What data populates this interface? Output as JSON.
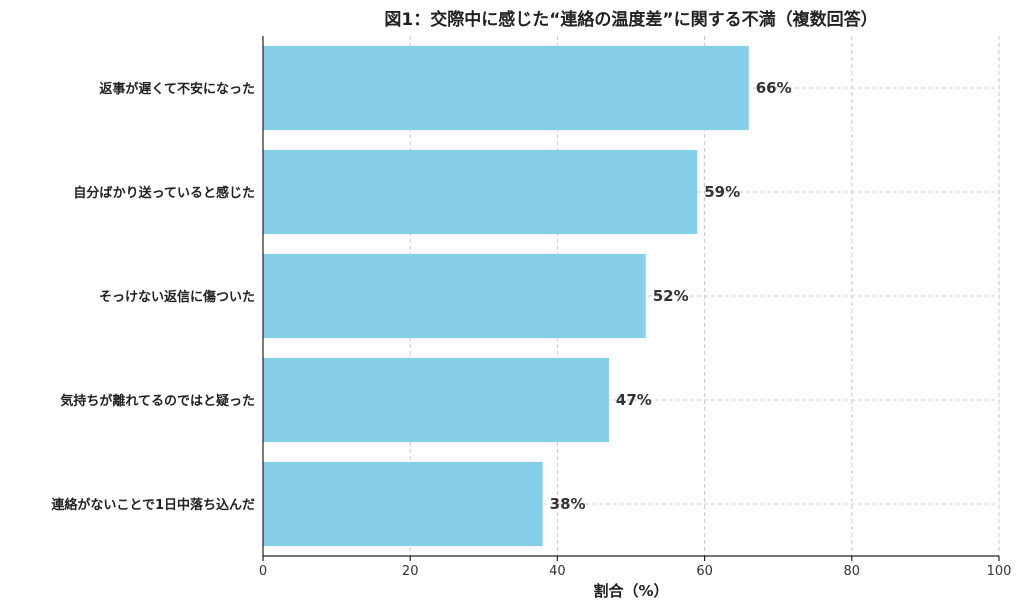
{
  "chart_data": {
    "type": "bar",
    "orientation": "horizontal",
    "title": "図1：交際中に感じた“連絡の温度差”に関する不満（複数回答）",
    "xlabel": "割合（%）",
    "ylabel": "",
    "xlim": [
      0,
      100
    ],
    "xticks": [
      0,
      20,
      40,
      60,
      80,
      100
    ],
    "categories": [
      "返事が遅くて不安になった",
      "自分ばかり送っていると感じた",
      "そっけない返信に傷ついた",
      "気持ちが離れてるのではと疑った",
      "連絡がないことで1日中落ち込んだ"
    ],
    "values": [
      66,
      59,
      52,
      47,
      38
    ],
    "value_labels": [
      "66%",
      "59%",
      "52%",
      "47%",
      "38%"
    ],
    "grid": true,
    "bar_color": "#87ceeb"
  }
}
